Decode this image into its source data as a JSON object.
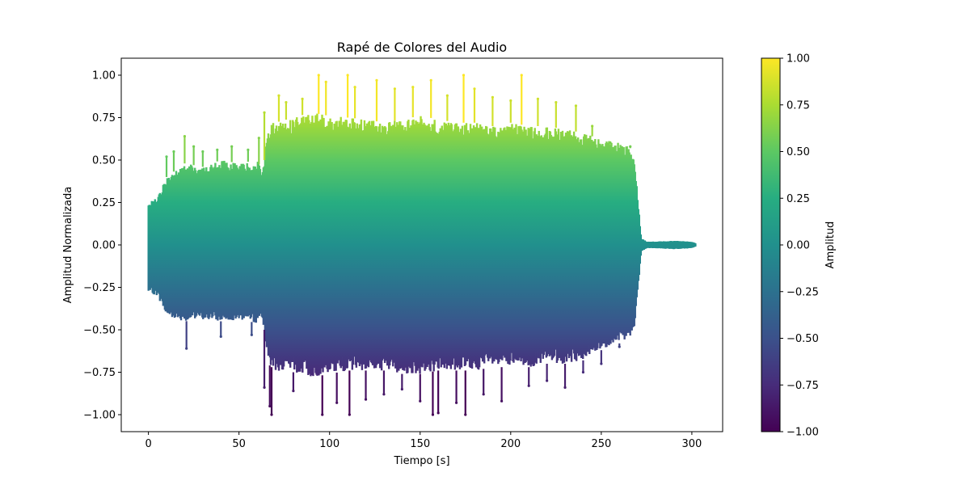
{
  "chart_data": {
    "type": "scatter",
    "title": "Rapé de Colores del Audio",
    "xlabel": "Tiempo [s]",
    "ylabel": "Amplitud Normalizada",
    "xlim": [
      -15,
      317
    ],
    "ylim": [
      -1.1,
      1.1
    ],
    "x_ticks": [
      0,
      50,
      100,
      150,
      200,
      250,
      300
    ],
    "x_tick_labels": [
      "0",
      "50",
      "100",
      "150",
      "200",
      "250",
      "300"
    ],
    "y_ticks": [
      -1.0,
      -0.75,
      -0.5,
      -0.25,
      0.0,
      0.25,
      0.5,
      0.75,
      1.0
    ],
    "y_tick_labels": [
      "−1.00",
      "−0.75",
      "−0.50",
      "−0.25",
      "0.00",
      "0.25",
      "0.50",
      "0.75",
      "1.00"
    ],
    "grid": false,
    "colormap": "viridis",
    "colorbar": {
      "label": "Amplitud",
      "range": [
        -1.0,
        1.0
      ],
      "ticks": [
        -1.0,
        -0.75,
        -0.5,
        -0.25,
        0.0,
        0.25,
        0.5,
        0.75,
        1.0
      ],
      "tick_labels": [
        "−1.00",
        "−0.75",
        "−0.50",
        "−0.25",
        "0.00",
        "0.25",
        "0.50",
        "0.75",
        "1.00"
      ]
    },
    "envelope": {
      "t": [
        0,
        5,
        10,
        20,
        30,
        40,
        50,
        60,
        62,
        64,
        66,
        68,
        70,
        80,
        90,
        100,
        110,
        120,
        130,
        140,
        150,
        160,
        170,
        180,
        190,
        200,
        210,
        220,
        230,
        240,
        250,
        260,
        265,
        268,
        270,
        272,
        275,
        280,
        290,
        300,
        302
      ],
      "upper": [
        0.25,
        0.28,
        0.4,
        0.48,
        0.46,
        0.5,
        0.48,
        0.5,
        0.45,
        0.5,
        0.7,
        0.72,
        0.72,
        0.75,
        0.78,
        0.76,
        0.75,
        0.74,
        0.72,
        0.74,
        0.76,
        0.74,
        0.72,
        0.72,
        0.7,
        0.72,
        0.7,
        0.7,
        0.68,
        0.66,
        0.62,
        0.6,
        0.58,
        0.55,
        0.3,
        0.04,
        0.02,
        0.02,
        0.025,
        0.02,
        0.01
      ],
      "lower": [
        -0.28,
        -0.3,
        -0.42,
        -0.45,
        -0.44,
        -0.45,
        -0.44,
        -0.46,
        -0.42,
        -0.5,
        -0.7,
        -0.72,
        -0.74,
        -0.75,
        -0.78,
        -0.76,
        -0.74,
        -0.74,
        -0.74,
        -0.76,
        -0.76,
        -0.74,
        -0.74,
        -0.74,
        -0.72,
        -0.72,
        -0.72,
        -0.7,
        -0.7,
        -0.68,
        -0.62,
        -0.58,
        -0.55,
        -0.5,
        -0.3,
        -0.04,
        -0.02,
        -0.02,
        -0.025,
        -0.02,
        -0.01
      ]
    },
    "peaks": [
      {
        "t": 10,
        "v": 0.52
      },
      {
        "t": 14,
        "v": 0.55
      },
      {
        "t": 20,
        "v": 0.64
      },
      {
        "t": 21,
        "v": -0.61
      },
      {
        "t": 25,
        "v": 0.58
      },
      {
        "t": 30,
        "v": 0.55
      },
      {
        "t": 38,
        "v": 0.56
      },
      {
        "t": 40,
        "v": -0.54
      },
      {
        "t": 46,
        "v": 0.58
      },
      {
        "t": 55,
        "v": 0.56
      },
      {
        "t": 57,
        "v": -0.53
      },
      {
        "t": 61,
        "v": 0.63
      },
      {
        "t": 64,
        "v": 0.78
      },
      {
        "t": 64,
        "v": -0.84
      },
      {
        "t": 67,
        "v": -0.95
      },
      {
        "t": 68,
        "v": -1.0
      },
      {
        "t": 72,
        "v": 0.88
      },
      {
        "t": 76,
        "v": 0.84
      },
      {
        "t": 80,
        "v": -0.86
      },
      {
        "t": 85,
        "v": 0.86
      },
      {
        "t": 94,
        "v": 1.0
      },
      {
        "t": 96,
        "v": -1.0
      },
      {
        "t": 98,
        "v": 0.96
      },
      {
        "t": 104,
        "v": -0.93
      },
      {
        "t": 110,
        "v": 1.0
      },
      {
        "t": 111,
        "v": -1.0
      },
      {
        "t": 114,
        "v": 0.93
      },
      {
        "t": 120,
        "v": -0.91
      },
      {
        "t": 126,
        "v": 0.97
      },
      {
        "t": 130,
        "v": -0.88
      },
      {
        "t": 136,
        "v": 0.92
      },
      {
        "t": 140,
        "v": -0.85
      },
      {
        "t": 146,
        "v": 0.93
      },
      {
        "t": 150,
        "v": -0.92
      },
      {
        "t": 156,
        "v": 0.97
      },
      {
        "t": 157,
        "v": -1.0
      },
      {
        "t": 160,
        "v": -0.99
      },
      {
        "t": 165,
        "v": 0.88
      },
      {
        "t": 170,
        "v": -0.93
      },
      {
        "t": 174,
        "v": 1.0
      },
      {
        "t": 175,
        "v": -1.0
      },
      {
        "t": 180,
        "v": 0.92
      },
      {
        "t": 185,
        "v": -0.88
      },
      {
        "t": 190,
        "v": 0.87
      },
      {
        "t": 195,
        "v": -0.92
      },
      {
        "t": 200,
        "v": 0.85
      },
      {
        "t": 206,
        "v": 1.0
      },
      {
        "t": 210,
        "v": -0.83
      },
      {
        "t": 215,
        "v": 0.86
      },
      {
        "t": 220,
        "v": -0.8
      },
      {
        "t": 225,
        "v": 0.84
      },
      {
        "t": 230,
        "v": -0.84
      },
      {
        "t": 236,
        "v": 0.82
      },
      {
        "t": 240,
        "v": -0.75
      },
      {
        "t": 245,
        "v": 0.7
      },
      {
        "t": 250,
        "v": -0.7
      },
      {
        "t": 255,
        "v": 0.6
      },
      {
        "t": 260,
        "v": -0.6
      },
      {
        "t": 266,
        "v": 0.58
      }
    ]
  }
}
